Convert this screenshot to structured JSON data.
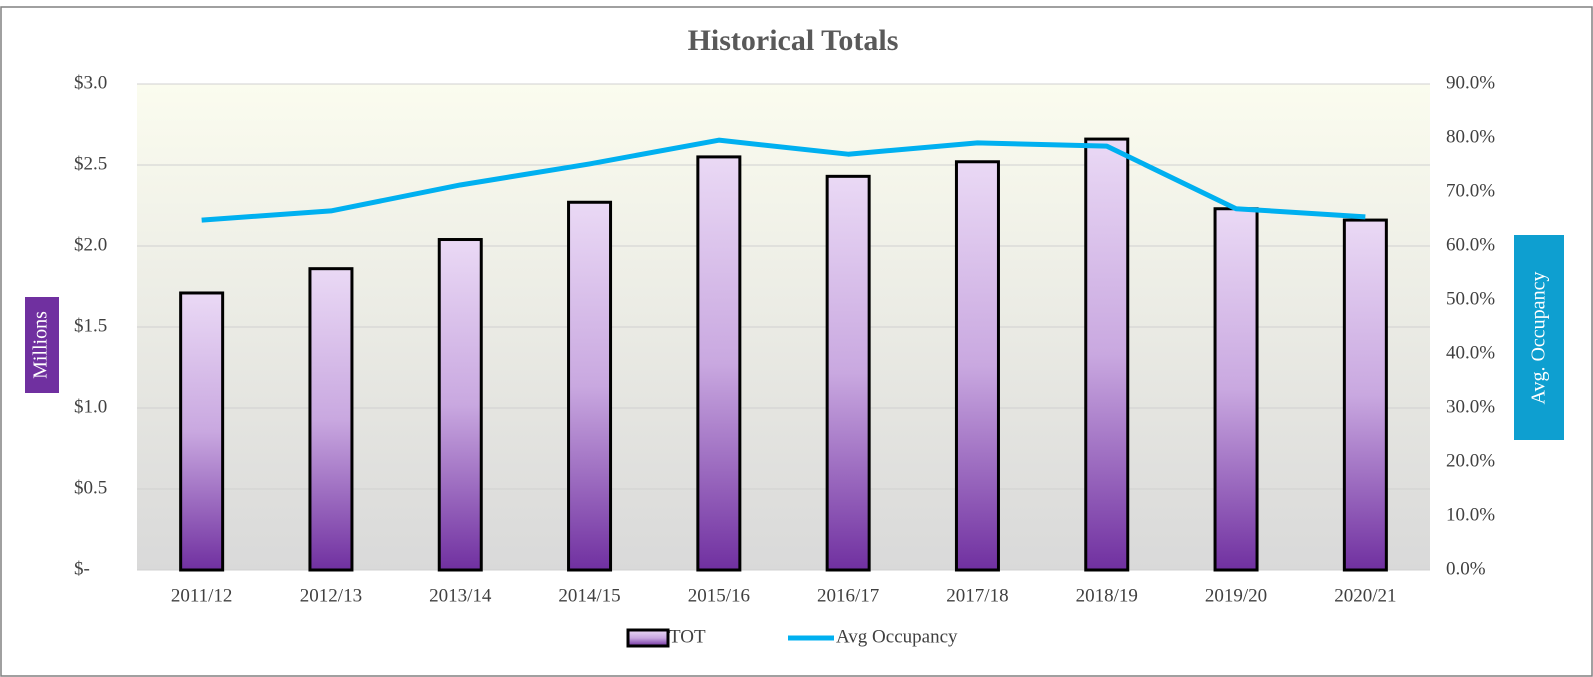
{
  "chart_data": {
    "type": "bar",
    "title": "Historical Totals",
    "categories": [
      "2011/12",
      "2012/13",
      "2013/14",
      "2014/15",
      "2015/16",
      "2016/17",
      "2017/18",
      "2018/19",
      "2019/20",
      "2020/21"
    ],
    "series": [
      {
        "name": "TOT",
        "color": "#7030a0",
        "values": [
          1.71,
          1.86,
          2.04,
          2.27,
          2.55,
          2.43,
          2.52,
          2.66,
          2.23,
          2.16
        ]
      },
      {
        "name": "Avg Occupancy",
        "color": "#00b0f0",
        "axis": "y2",
        "values": [
          64.8,
          66.5,
          71.3,
          75.2,
          79.6,
          77.0,
          79.1,
          78.5,
          66.9,
          65.4
        ]
      }
    ],
    "ylabel": "Millions",
    "y2label": "Avg. Occupancy",
    "ylim": [
      0,
      3
    ],
    "yticks": [
      {
        "value": 0,
        "label": "$-"
      },
      {
        "value": 0.5,
        "label": "$0.5"
      },
      {
        "value": 1,
        "label": "$1.0"
      },
      {
        "value": 1.5,
        "label": "$1.5"
      },
      {
        "value": 2,
        "label": "$2.0"
      },
      {
        "value": 2.5,
        "label": "$2.5"
      },
      {
        "value": 3,
        "label": "$3.0"
      }
    ],
    "y2lim": [
      0,
      90
    ],
    "y2ticks": [
      {
        "value": 0,
        "label": "0.0%"
      },
      {
        "value": 10,
        "label": "10.0%"
      },
      {
        "value": 20,
        "label": "20.0%"
      },
      {
        "value": 30,
        "label": "30.0%"
      },
      {
        "value": 40,
        "label": "40.0%"
      },
      {
        "value": 50,
        "label": "50.0%"
      },
      {
        "value": 60,
        "label": "60.0%"
      },
      {
        "value": 70,
        "label": "70.0%"
      },
      {
        "value": 80,
        "label": "80.0%"
      },
      {
        "value": 90,
        "label": "90.0%"
      }
    ],
    "grid": true,
    "legend": "bottom"
  }
}
